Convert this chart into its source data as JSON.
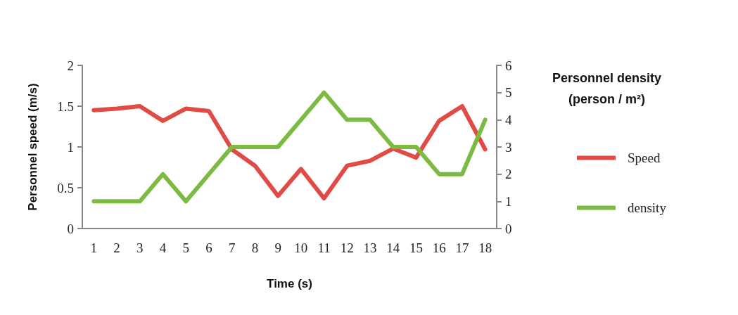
{
  "chart_data": {
    "type": "line",
    "xlabel": "Time (s)",
    "ylabel": "Personnel speed (m/s)",
    "y2label": "Personnel density (person / m²)",
    "categories": [
      "1",
      "2",
      "3",
      "4",
      "5",
      "6",
      "7",
      "8",
      "9",
      "10",
      "11",
      "12",
      "13",
      "14",
      "15",
      "16",
      "17",
      "18"
    ],
    "series": [
      {
        "name": "Speed",
        "color": "#e04b45",
        "values": [
          1.45,
          1.47,
          1.5,
          1.32,
          1.47,
          1.44,
          0.97,
          0.77,
          0.4,
          0.73,
          0.37,
          0.77,
          0.83,
          0.98,
          0.87,
          1.32,
          1.5,
          0.97
        ]
      },
      {
        "name": "density",
        "color": "#7cbb42",
        "axis": "y2",
        "values": [
          1,
          1,
          1,
          2,
          1,
          2,
          3,
          3,
          3,
          4,
          5,
          4,
          4,
          3,
          3,
          2,
          2,
          4
        ]
      }
    ],
    "ylim": [
      0,
      2
    ],
    "yticks": [
      0,
      0.5,
      1,
      1.5,
      2
    ],
    "y2lim": [
      0,
      6
    ],
    "y2ticks": [
      0,
      1,
      2,
      3,
      4,
      5,
      6
    ],
    "grid": false,
    "legend": "right",
    "marker": "none",
    "line_style": "solid"
  }
}
